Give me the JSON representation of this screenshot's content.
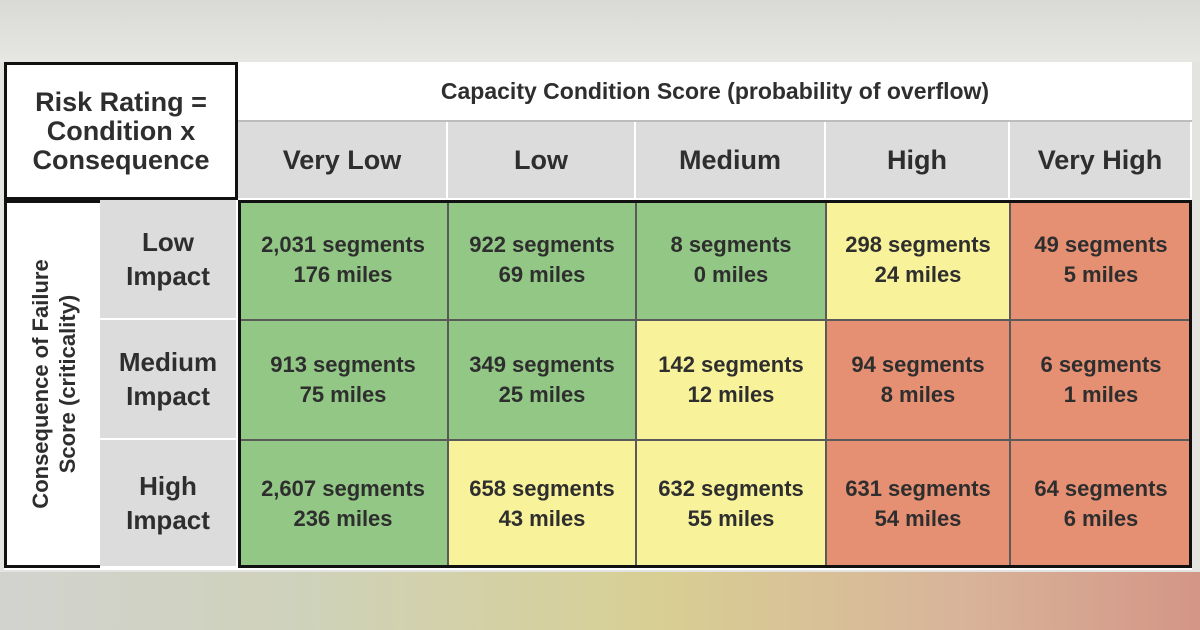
{
  "corner_label": [
    "Risk Rating =",
    "Condition x",
    "Consequence"
  ],
  "column_group_title": "Capacity Condition Score (probability of overflow)",
  "row_group_title": [
    "Consequence of Failure",
    "Score (criticality)"
  ],
  "columns": [
    "Very Low",
    "Low",
    "Medium",
    "High",
    "Very High"
  ],
  "rows": [
    {
      "label": [
        "Low",
        "Impact"
      ],
      "cells": [
        {
          "segments": "2,031 segments",
          "miles": "176 miles",
          "level": "green"
        },
        {
          "segments": "922 segments",
          "miles": "69 miles",
          "level": "green"
        },
        {
          "segments": "8 segments",
          "miles": "0 miles",
          "level": "green"
        },
        {
          "segments": "298 segments",
          "miles": "24 miles",
          "level": "yellow"
        },
        {
          "segments": "49 segments",
          "miles": "5 miles",
          "level": "red"
        }
      ]
    },
    {
      "label": [
        "Medium",
        "Impact"
      ],
      "cells": [
        {
          "segments": "913 segments",
          "miles": "75 miles",
          "level": "green"
        },
        {
          "segments": "349 segments",
          "miles": "25 miles",
          "level": "green"
        },
        {
          "segments": "142 segments",
          "miles": "12 miles",
          "level": "yellow"
        },
        {
          "segments": "94 segments",
          "miles": "8 miles",
          "level": "red"
        },
        {
          "segments": "6 segments",
          "miles": "1 miles",
          "level": "red"
        }
      ]
    },
    {
      "label": [
        "High",
        "Impact"
      ],
      "cells": [
        {
          "segments": "2,607 segments",
          "miles": "236 miles",
          "level": "green"
        },
        {
          "segments": "658 segments",
          "miles": "43 miles",
          "level": "yellow"
        },
        {
          "segments": "632 segments",
          "miles": "55 miles",
          "level": "yellow"
        },
        {
          "segments": "631 segments",
          "miles": "54 miles",
          "level": "red"
        },
        {
          "segments": "64 segments",
          "miles": "6 miles",
          "level": "red"
        }
      ]
    }
  ],
  "colors": {
    "green": "#92c785",
    "yellow": "#f8f29a",
    "red": "#e58f73"
  }
}
